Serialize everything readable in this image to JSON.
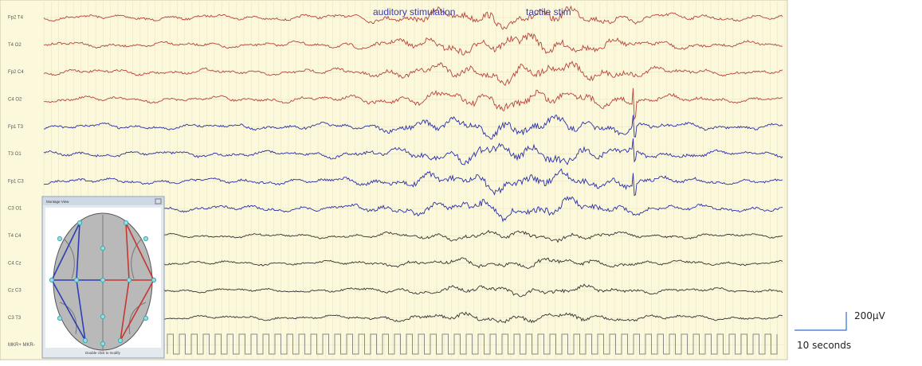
{
  "annotations": [
    "auditory stimulation",
    "tactile stim"
  ],
  "channels": [
    "Fp2 T4",
    "T4 O2",
    "Fp2 C4",
    "C4 O2",
    "Fp1 T3",
    "T3 O1",
    "Fp1 C3",
    "C3 O1",
    "T4 C4",
    "C4 Cz",
    "Cz C3",
    "C3 T3",
    "MKR+ MKR-"
  ],
  "montage_window": {
    "title": "Montage View",
    "footer": "Double click to modify"
  },
  "scale": {
    "amplitude": "200µV",
    "time": "10 seconds"
  }
}
